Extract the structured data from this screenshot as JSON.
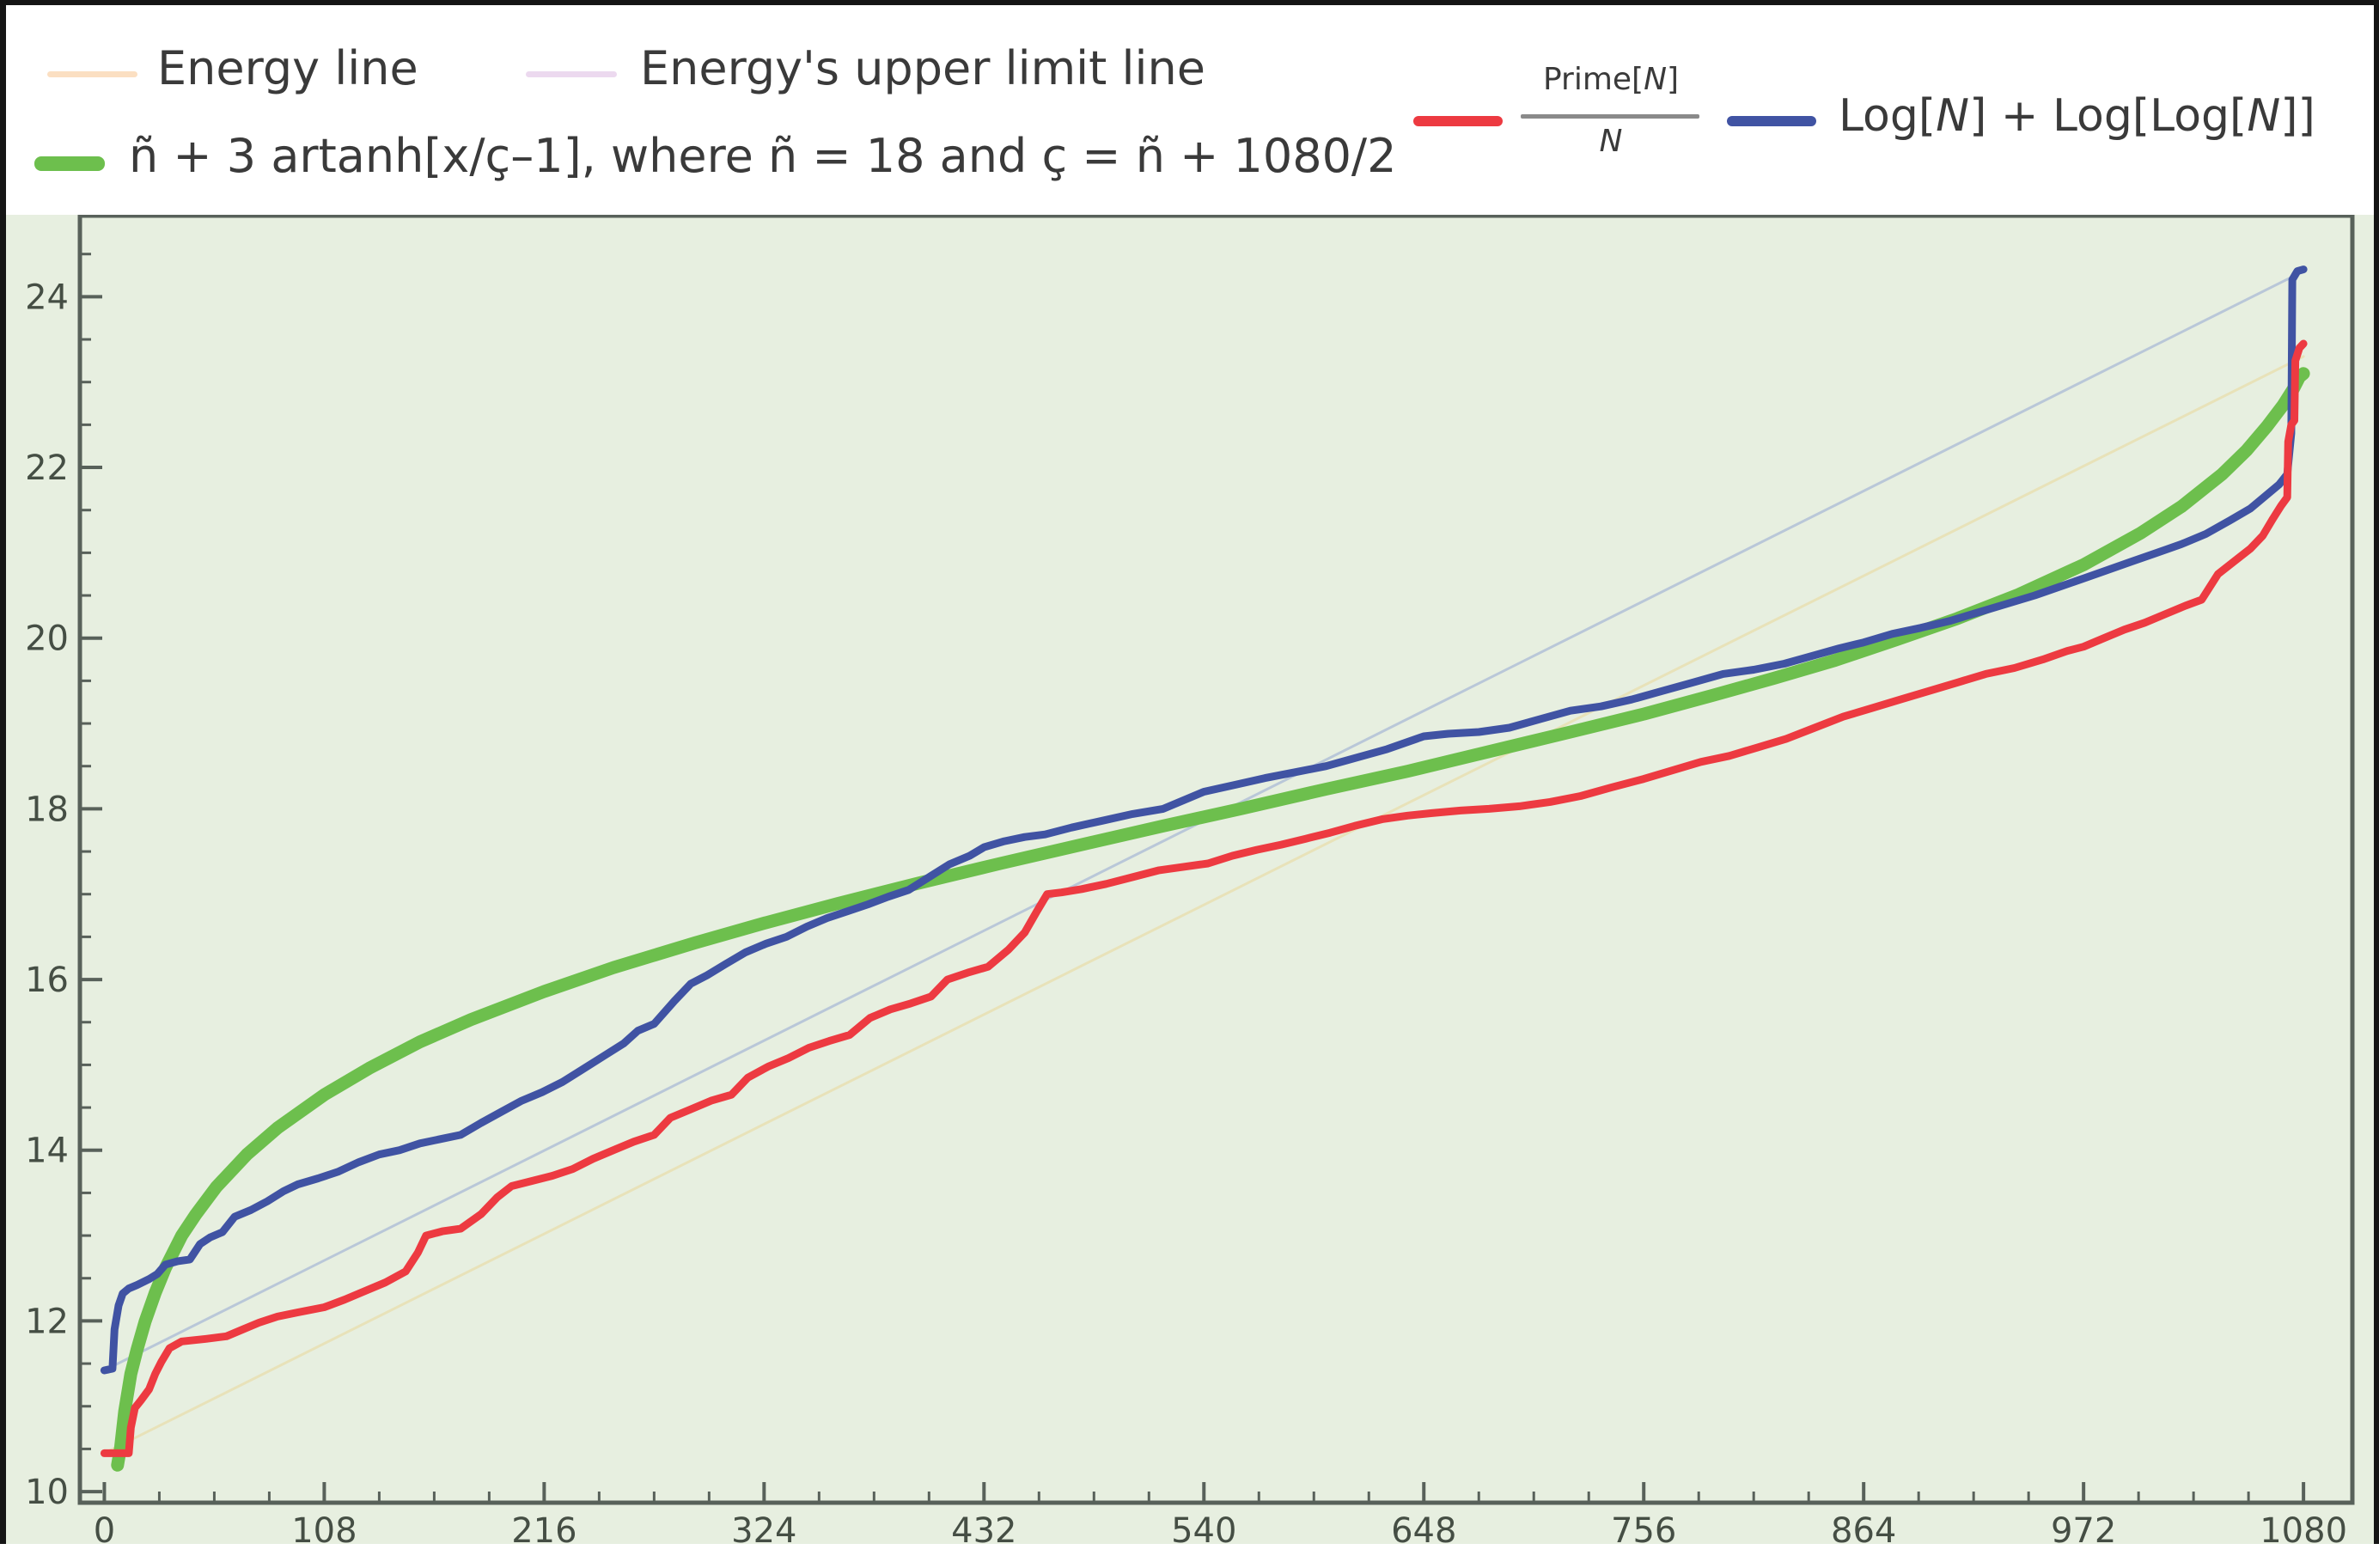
{
  "legend": {
    "row1": [
      {
        "label": "Energy line",
        "swatch_color": "#fbdfc2"
      },
      {
        "label": "Energy's upper limit line",
        "swatch_color": "#ecd9ef"
      }
    ],
    "row2": {
      "label": "ñ + 3 artanh[x/ç–1], where ñ = 18 and ç = ñ + 1080/2",
      "swatch_color": "#6dbf4d"
    },
    "right": {
      "prime": {
        "numerator_parts": [
          "Prime[",
          "N",
          "]"
        ],
        "denominator": "N",
        "swatch_color": "#ed3a41"
      },
      "log": {
        "parts": [
          "Log[",
          "N",
          "] + Log[Log[",
          "N",
          "]]"
        ],
        "swatch_color": "#4053a3"
      }
    }
  },
  "chart_data": {
    "type": "line",
    "title": "",
    "xlabel": "",
    "ylabel": "",
    "x_ticks": [
      0,
      108,
      216,
      324,
      432,
      540,
      648,
      756,
      864,
      972,
      1080
    ],
    "x_minor_step": 27,
    "y_ticks": [
      10,
      12,
      14,
      16,
      18,
      20,
      22,
      24
    ],
    "y_minor_step": 0.5,
    "x_range": [
      -12,
      1104
    ],
    "y_range": [
      9.87,
      24.95
    ],
    "grid": false,
    "legend_position": "top",
    "plot_bg": "#e7efe0",
    "frame_color": "#58615a",
    "tick_label_color": "#454e44",
    "series": [
      {
        "name": "energy-line",
        "color": "#e8e2b9",
        "width": 3,
        "points": [
          [
            0,
            10.45
          ],
          [
            1080,
            23.3
          ]
        ]
      },
      {
        "name": "energy-upper-limit-line",
        "color": "#b9c7d8",
        "width": 3,
        "points": [
          [
            0,
            11.42
          ],
          [
            1080,
            24.3
          ]
        ]
      },
      {
        "name": "artanh-curve",
        "color": "#6dbf4d",
        "width": 15,
        "points": [
          [
            6.5,
            10.31
          ],
          [
            8,
            10.52
          ],
          [
            10,
            10.94
          ],
          [
            13,
            11.38
          ],
          [
            16,
            11.66
          ],
          [
            20,
            11.99
          ],
          [
            25,
            12.33
          ],
          [
            30,
            12.62
          ],
          [
            38,
            13.0
          ],
          [
            45,
            13.25
          ],
          [
            55,
            13.57
          ],
          [
            70,
            13.95
          ],
          [
            85,
            14.26
          ],
          [
            108,
            14.65
          ],
          [
            130,
            14.96
          ],
          [
            155,
            15.27
          ],
          [
            180,
            15.53
          ],
          [
            216,
            15.86
          ],
          [
            250,
            16.14
          ],
          [
            290,
            16.43
          ],
          [
            324,
            16.66
          ],
          [
            360,
            16.89
          ],
          [
            400,
            17.13
          ],
          [
            440,
            17.36
          ],
          [
            480,
            17.58
          ],
          [
            520,
            17.8
          ],
          [
            558,
            18.0
          ],
          [
            600,
            18.23
          ],
          [
            640,
            18.44
          ],
          [
            680,
            18.67
          ],
          [
            720,
            18.9
          ],
          [
            756,
            19.11
          ],
          [
            790,
            19.33
          ],
          [
            820,
            19.53
          ],
          [
            850,
            19.74
          ],
          [
            880,
            19.98
          ],
          [
            910,
            20.23
          ],
          [
            940,
            20.51
          ],
          [
            972,
            20.86
          ],
          [
            1000,
            21.23
          ],
          [
            1020,
            21.54
          ],
          [
            1040,
            21.92
          ],
          [
            1052,
            22.2
          ],
          [
            1062,
            22.48
          ],
          [
            1070,
            22.73
          ],
          [
            1075,
            22.92
          ],
          [
            1078,
            23.06
          ],
          [
            1080,
            23.1
          ]
        ]
      },
      {
        "name": "log-curve",
        "color": "#4053a3",
        "width": 9,
        "points": [
          [
            0,
            11.42
          ],
          [
            4,
            11.44
          ],
          [
            5,
            11.9
          ],
          [
            7,
            12.18
          ],
          [
            9,
            12.32
          ],
          [
            12,
            12.38
          ],
          [
            16,
            12.42
          ],
          [
            22,
            12.49
          ],
          [
            26,
            12.55
          ],
          [
            30,
            12.66
          ],
          [
            36,
            12.7
          ],
          [
            42,
            12.72
          ],
          [
            47,
            12.9
          ],
          [
            52,
            12.98
          ],
          [
            58,
            13.04
          ],
          [
            64,
            13.22
          ],
          [
            72,
            13.3
          ],
          [
            80,
            13.4
          ],
          [
            88,
            13.52
          ],
          [
            95,
            13.6
          ],
          [
            105,
            13.67
          ],
          [
            115,
            13.75
          ],
          [
            125,
            13.86
          ],
          [
            135,
            13.95
          ],
          [
            145,
            14.0
          ],
          [
            155,
            14.08
          ],
          [
            165,
            14.13
          ],
          [
            175,
            14.18
          ],
          [
            185,
            14.32
          ],
          [
            195,
            14.45
          ],
          [
            205,
            14.58
          ],
          [
            215,
            14.68
          ],
          [
            225,
            14.8
          ],
          [
            235,
            14.95
          ],
          [
            245,
            15.1
          ],
          [
            255,
            15.25
          ],
          [
            262,
            15.4
          ],
          [
            270,
            15.48
          ],
          [
            280,
            15.75
          ],
          [
            288,
            15.95
          ],
          [
            296,
            16.05
          ],
          [
            305,
            16.18
          ],
          [
            315,
            16.32
          ],
          [
            325,
            16.42
          ],
          [
            335,
            16.5
          ],
          [
            345,
            16.62
          ],
          [
            355,
            16.72
          ],
          [
            365,
            16.8
          ],
          [
            375,
            16.88
          ],
          [
            385,
            16.97
          ],
          [
            395,
            17.05
          ],
          [
            405,
            17.2
          ],
          [
            415,
            17.35
          ],
          [
            425,
            17.45
          ],
          [
            432,
            17.55
          ],
          [
            442,
            17.62
          ],
          [
            452,
            17.67
          ],
          [
            462,
            17.7
          ],
          [
            475,
            17.78
          ],
          [
            490,
            17.86
          ],
          [
            505,
            17.94
          ],
          [
            520,
            18.0
          ],
          [
            540,
            18.2
          ],
          [
            555,
            18.28
          ],
          [
            570,
            18.36
          ],
          [
            585,
            18.43
          ],
          [
            600,
            18.5
          ],
          [
            615,
            18.6
          ],
          [
            630,
            18.7
          ],
          [
            648,
            18.85
          ],
          [
            660,
            18.88
          ],
          [
            675,
            18.9
          ],
          [
            690,
            18.95
          ],
          [
            705,
            19.05
          ],
          [
            720,
            19.15
          ],
          [
            735,
            19.2
          ],
          [
            750,
            19.28
          ],
          [
            765,
            19.38
          ],
          [
            780,
            19.48
          ],
          [
            795,
            19.58
          ],
          [
            810,
            19.63
          ],
          [
            825,
            19.7
          ],
          [
            840,
            19.8
          ],
          [
            852,
            19.88
          ],
          [
            864,
            19.95
          ],
          [
            878,
            20.05
          ],
          [
            892,
            20.12
          ],
          [
            906,
            20.2
          ],
          [
            920,
            20.3
          ],
          [
            934,
            20.4
          ],
          [
            948,
            20.5
          ],
          [
            960,
            20.6
          ],
          [
            972,
            20.7
          ],
          [
            984,
            20.8
          ],
          [
            996,
            20.9
          ],
          [
            1008,
            21.0
          ],
          [
            1020,
            21.1
          ],
          [
            1032,
            21.22
          ],
          [
            1044,
            21.38
          ],
          [
            1054,
            21.52
          ],
          [
            1062,
            21.68
          ],
          [
            1068,
            21.8
          ],
          [
            1072,
            21.92
          ],
          [
            1074,
            22.4
          ],
          [
            1074.5,
            24.2
          ],
          [
            1077,
            24.3
          ],
          [
            1080,
            24.32
          ]
        ]
      },
      {
        "name": "prime-curve",
        "color": "#ed3a41",
        "width": 9,
        "points": [
          [
            0,
            10.45
          ],
          [
            12,
            10.45
          ],
          [
            13,
            10.75
          ],
          [
            15,
            10.98
          ],
          [
            18,
            11.07
          ],
          [
            22,
            11.2
          ],
          [
            25,
            11.38
          ],
          [
            28,
            11.52
          ],
          [
            32,
            11.68
          ],
          [
            38,
            11.76
          ],
          [
            50,
            11.79
          ],
          [
            60,
            11.82
          ],
          [
            68,
            11.9
          ],
          [
            76,
            11.98
          ],
          [
            85,
            12.05
          ],
          [
            95,
            12.1
          ],
          [
            108,
            12.16
          ],
          [
            118,
            12.25
          ],
          [
            128,
            12.35
          ],
          [
            138,
            12.45
          ],
          [
            148,
            12.58
          ],
          [
            154,
            12.8
          ],
          [
            158,
            13.0
          ],
          [
            166,
            13.05
          ],
          [
            175,
            13.08
          ],
          [
            185,
            13.25
          ],
          [
            193,
            13.45
          ],
          [
            200,
            13.58
          ],
          [
            210,
            13.64
          ],
          [
            220,
            13.7
          ],
          [
            230,
            13.78
          ],
          [
            240,
            13.9
          ],
          [
            250,
            14.0
          ],
          [
            260,
            14.1
          ],
          [
            270,
            14.18
          ],
          [
            278,
            14.38
          ],
          [
            288,
            14.48
          ],
          [
            298,
            14.58
          ],
          [
            308,
            14.65
          ],
          [
            316,
            14.85
          ],
          [
            326,
            14.98
          ],
          [
            336,
            15.08
          ],
          [
            346,
            15.2
          ],
          [
            356,
            15.28
          ],
          [
            366,
            15.35
          ],
          [
            376,
            15.55
          ],
          [
            386,
            15.65
          ],
          [
            396,
            15.72
          ],
          [
            406,
            15.8
          ],
          [
            414,
            16.0
          ],
          [
            424,
            16.08
          ],
          [
            434,
            16.15
          ],
          [
            444,
            16.35
          ],
          [
            452,
            16.55
          ],
          [
            458,
            16.8
          ],
          [
            463,
            17.0
          ],
          [
            470,
            17.02
          ],
          [
            480,
            17.06
          ],
          [
            492,
            17.12
          ],
          [
            505,
            17.2
          ],
          [
            518,
            17.28
          ],
          [
            530,
            17.32
          ],
          [
            542,
            17.36
          ],
          [
            554,
            17.45
          ],
          [
            566,
            17.52
          ],
          [
            578,
            17.58
          ],
          [
            590,
            17.65
          ],
          [
            602,
            17.72
          ],
          [
            614,
            17.8
          ],
          [
            628,
            17.88
          ],
          [
            640,
            17.92
          ],
          [
            652,
            17.95
          ],
          [
            666,
            17.98
          ],
          [
            680,
            18.0
          ],
          [
            695,
            18.03
          ],
          [
            710,
            18.08
          ],
          [
            725,
            18.15
          ],
          [
            740,
            18.25
          ],
          [
            756,
            18.35
          ],
          [
            770,
            18.45
          ],
          [
            784,
            18.55
          ],
          [
            798,
            18.62
          ],
          [
            812,
            18.72
          ],
          [
            826,
            18.82
          ],
          [
            840,
            18.95
          ],
          [
            854,
            19.08
          ],
          [
            868,
            19.18
          ],
          [
            882,
            19.28
          ],
          [
            896,
            19.38
          ],
          [
            910,
            19.48
          ],
          [
            924,
            19.58
          ],
          [
            938,
            19.65
          ],
          [
            952,
            19.75
          ],
          [
            964,
            19.85
          ],
          [
            972,
            19.9
          ],
          [
            982,
            20.0
          ],
          [
            992,
            20.1
          ],
          [
            1002,
            20.18
          ],
          [
            1012,
            20.28
          ],
          [
            1022,
            20.38
          ],
          [
            1030,
            20.45
          ],
          [
            1038,
            20.75
          ],
          [
            1046,
            20.9
          ],
          [
            1054,
            21.05
          ],
          [
            1060,
            21.2
          ],
          [
            1065,
            21.4
          ],
          [
            1069,
            21.55
          ],
          [
            1072,
            21.65
          ],
          [
            1072.5,
            22.3
          ],
          [
            1074,
            22.5
          ],
          [
            1075.5,
            22.55
          ],
          [
            1076,
            23.25
          ],
          [
            1078,
            23.4
          ],
          [
            1080,
            23.45
          ]
        ]
      }
    ]
  }
}
